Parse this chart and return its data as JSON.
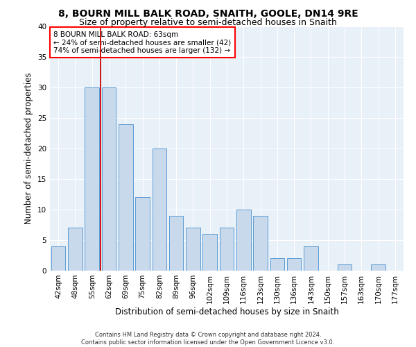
{
  "title": "8, BOURN MILL BALK ROAD, SNAITH, GOOLE, DN14 9RE",
  "subtitle": "Size of property relative to semi-detached houses in Snaith",
  "xlabel": "Distribution of semi-detached houses by size in Snaith",
  "ylabel": "Number of semi-detached properties",
  "categories": [
    "42sqm",
    "48sqm",
    "55sqm",
    "62sqm",
    "69sqm",
    "75sqm",
    "82sqm",
    "89sqm",
    "96sqm",
    "102sqm",
    "109sqm",
    "116sqm",
    "123sqm",
    "130sqm",
    "136sqm",
    "143sqm",
    "150sqm",
    "157sqm",
    "163sqm",
    "170sqm",
    "177sqm"
  ],
  "values": [
    4,
    7,
    30,
    30,
    24,
    12,
    20,
    9,
    7,
    6,
    7,
    10,
    9,
    2,
    2,
    4,
    0,
    1,
    0,
    1,
    0
  ],
  "bar_color": "#c8d9ec",
  "bar_edge_color": "#5b9bd5",
  "annotation_title": "8 BOURN MILL BALK ROAD: 63sqm",
  "annotation_line1": "← 24% of semi-detached houses are smaller (42)",
  "annotation_line2": "74% of semi-detached houses are larger (132) →",
  "vline_color": "#cc0000",
  "vline_x_index": 2.5,
  "ylim": [
    0,
    40
  ],
  "yticks": [
    0,
    5,
    10,
    15,
    20,
    25,
    30,
    35,
    40
  ],
  "footer1": "Contains HM Land Registry data © Crown copyright and database right 2024.",
  "footer2": "Contains public sector information licensed under the Open Government Licence v3.0.",
  "bg_color": "#e8f0f8",
  "fig_bg_color": "#ffffff",
  "title_fontsize": 10,
  "subtitle_fontsize": 9,
  "xlabel_fontsize": 8.5,
  "ylabel_fontsize": 8.5,
  "tick_fontsize": 7.5,
  "annotation_fontsize": 7.5,
  "footer_fontsize": 6
}
